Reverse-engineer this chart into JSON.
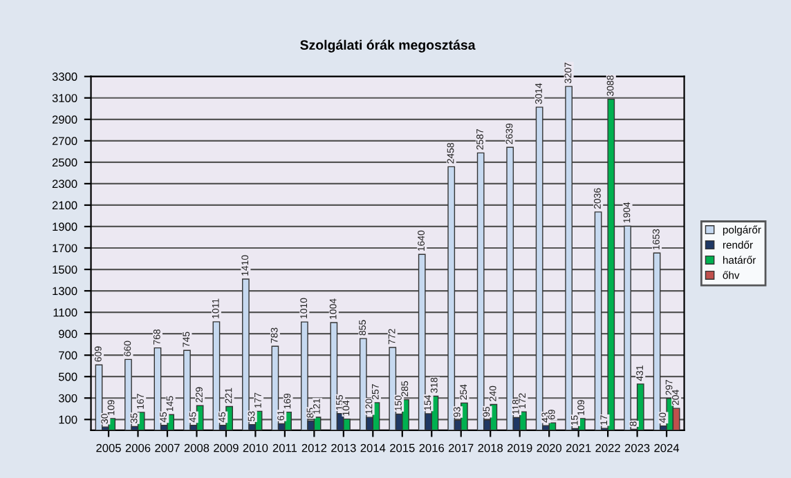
{
  "chart_data": {
    "type": "bar",
    "title": "Szolgálati órák megosztása",
    "categories": [
      "2005",
      "2006",
      "2007",
      "2008",
      "2009",
      "2010",
      "2011",
      "2012",
      "2013",
      "2014",
      "2015",
      "2016",
      "2017",
      "2018",
      "2019",
      "2020",
      "2021",
      "2022",
      "2023",
      "2024"
    ],
    "series": [
      {
        "name": "polgárőr",
        "color": "#c6d9f0",
        "values": [
          609,
          660,
          768,
          745,
          1011,
          1410,
          783,
          1010,
          1004,
          855,
          772,
          1640,
          2458,
          2587,
          2639,
          3014,
          3207,
          2036,
          1904,
          1653
        ]
      },
      {
        "name": "rendőr",
        "color": "#1f3864",
        "values": [
          30,
          35,
          45,
          45,
          45,
          53,
          61,
          85,
          155,
          120,
          150,
          154,
          93,
          95,
          118,
          43,
          15,
          17,
          8,
          40
        ]
      },
      {
        "name": "határőr",
        "color": "#00b050",
        "values": [
          109,
          167,
          145,
          229,
          221,
          177,
          169,
          121,
          104,
          257,
          285,
          318,
          254,
          240,
          172,
          69,
          109,
          3088,
          431,
          297
        ]
      },
      {
        "name": "őhv",
        "color": "#c0504d",
        "values": [
          null,
          null,
          null,
          null,
          null,
          null,
          null,
          null,
          null,
          null,
          null,
          null,
          null,
          null,
          null,
          null,
          null,
          null,
          null,
          204
        ]
      }
    ],
    "ylim": [
      0,
      3300
    ],
    "yticks": [
      100,
      300,
      500,
      700,
      900,
      1100,
      1300,
      1500,
      1700,
      1900,
      2100,
      2300,
      2500,
      2700,
      2900,
      3100,
      3300
    ],
    "grid": "y",
    "legend": "right",
    "data_labels": true
  }
}
